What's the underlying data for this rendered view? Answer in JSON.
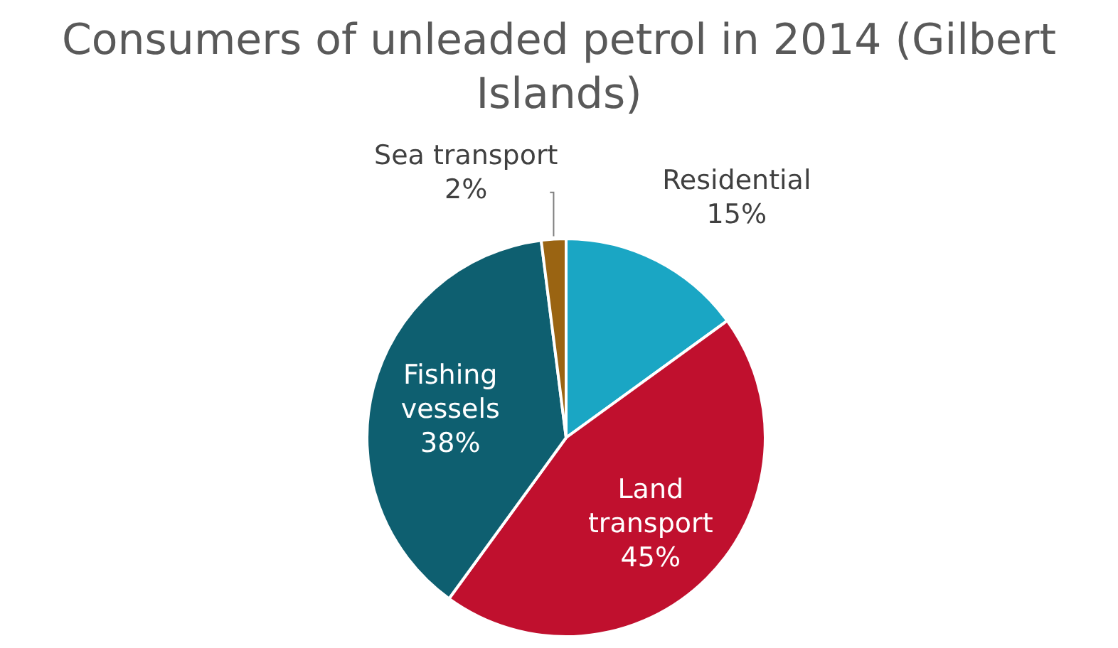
{
  "chart_data": {
    "type": "pie",
    "title": "Consumers of unleaded petrol in 2014 (Gilbert Islands)",
    "categories": [
      "Residential",
      "Land transport",
      "Fishing vessels",
      "Sea transport"
    ],
    "values": [
      15,
      45,
      38,
      2
    ],
    "colors": [
      "#1aa6c4",
      "#c0102e",
      "#0e5f70",
      "#9a6412"
    ],
    "value_labels": [
      "15%",
      "45%",
      "38%",
      "2%"
    ]
  }
}
